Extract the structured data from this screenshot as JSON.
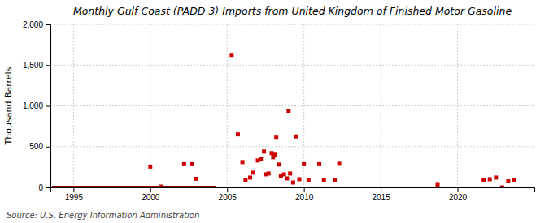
{
  "chart_data": {
    "type": "scatter",
    "title": "Monthly Gulf Coast (PADD 3) Imports from United Kingdom of Finished Motor Gasoline",
    "ylabel": "Thousand Barrels",
    "annotations": [
      "Source: U.S. Energy Information Administration"
    ],
    "xlim": [
      1993.5,
      2025.0
    ],
    "ylim": [
      0,
      2000
    ],
    "xticks": [
      1995,
      2000,
      2005,
      2010,
      2015,
      2020
    ],
    "yticks": [
      0,
      500,
      {
        "value": 1000,
        "label": "1,000"
      },
      {
        "value": 1500,
        "label": "1,500"
      },
      {
        "value": 2000,
        "label": "2,000"
      }
    ],
    "grid": true,
    "series": [
      {
        "type": "scatter",
        "marker": "square",
        "color": "#cc0000",
        "x": [
          2000.0,
          2000.7,
          2002.2,
          2002.7,
          2003.0,
          2005.3,
          2005.7,
          2006.0,
          2006.2,
          2006.5,
          2006.7,
          2007.0,
          2007.2,
          2007.4,
          2007.5,
          2007.7,
          2007.9,
          2008.0,
          2008.1,
          2008.2,
          2008.4,
          2008.5,
          2008.7,
          2008.9,
          2009.0,
          2009.1,
          2009.3,
          2009.5,
          2009.7,
          2010.0,
          2010.3,
          2011.0,
          2011.3,
          2012.0,
          2012.3,
          2018.7,
          2021.7,
          2022.1,
          2022.5,
          2022.9,
          2023.3,
          2023.7
        ],
        "values": [
          255,
          10,
          285,
          285,
          105,
          1625,
          650,
          310,
          90,
          120,
          180,
          330,
          350,
          440,
          160,
          170,
          420,
          370,
          400,
          610,
          280,
          140,
          160,
          110,
          940,
          170,
          60,
          625,
          100,
          285,
          90,
          285,
          90,
          90,
          290,
          30,
          95,
          100,
          120,
          0,
          75,
          95
        ]
      },
      {
        "type": "line",
        "line_style": "solid",
        "color": "#8b0000",
        "x": [
          1993.6,
          2004.3
        ],
        "values": [
          0,
          0
        ]
      }
    ]
  }
}
